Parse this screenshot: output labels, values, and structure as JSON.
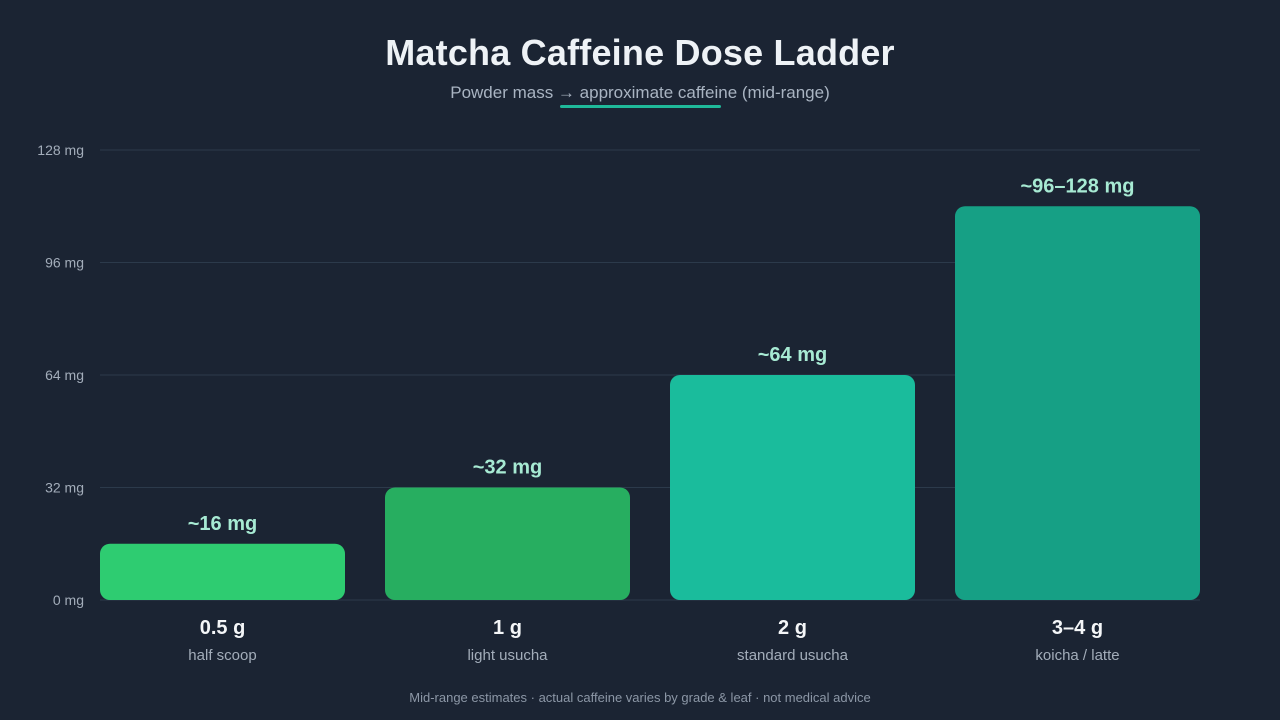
{
  "header": {
    "title": "Matcha Caffeine Dose Ladder",
    "subtitle": "Powder mass → approximate caffeine (mid-range)"
  },
  "footnote": "Mid-range estimates · actual caffeine varies by grade & leaf · not medical advice",
  "colors": {
    "background": "#1b2433",
    "accent": "#1fb99a"
  },
  "chart_data": {
    "type": "bar",
    "title": "Matcha Caffeine Dose Ladder",
    "subtitle": "Powder mass → approximate caffeine (mid-range)",
    "xlabel": "",
    "ylabel": "",
    "ylim": [
      0,
      128
    ],
    "yticks": [
      0,
      32,
      64,
      96,
      128
    ],
    "ytick_labels": [
      "0 mg",
      "32 mg",
      "64 mg",
      "96 mg",
      "128 mg"
    ],
    "grid": true,
    "categories": [
      "0.5 g",
      "1 g",
      "2 g",
      "3–4 g"
    ],
    "category_sublabels": [
      "half scoop",
      "light usucha",
      "standard usucha",
      "koicha / latte"
    ],
    "values": [
      16,
      32,
      64,
      112
    ],
    "value_labels": [
      "~16 mg",
      "~32 mg",
      "~64 mg",
      "~96–128 mg"
    ],
    "bar_colors": [
      "#2ecc71",
      "#27ae60",
      "#1abc9c",
      "#16a085"
    ]
  }
}
